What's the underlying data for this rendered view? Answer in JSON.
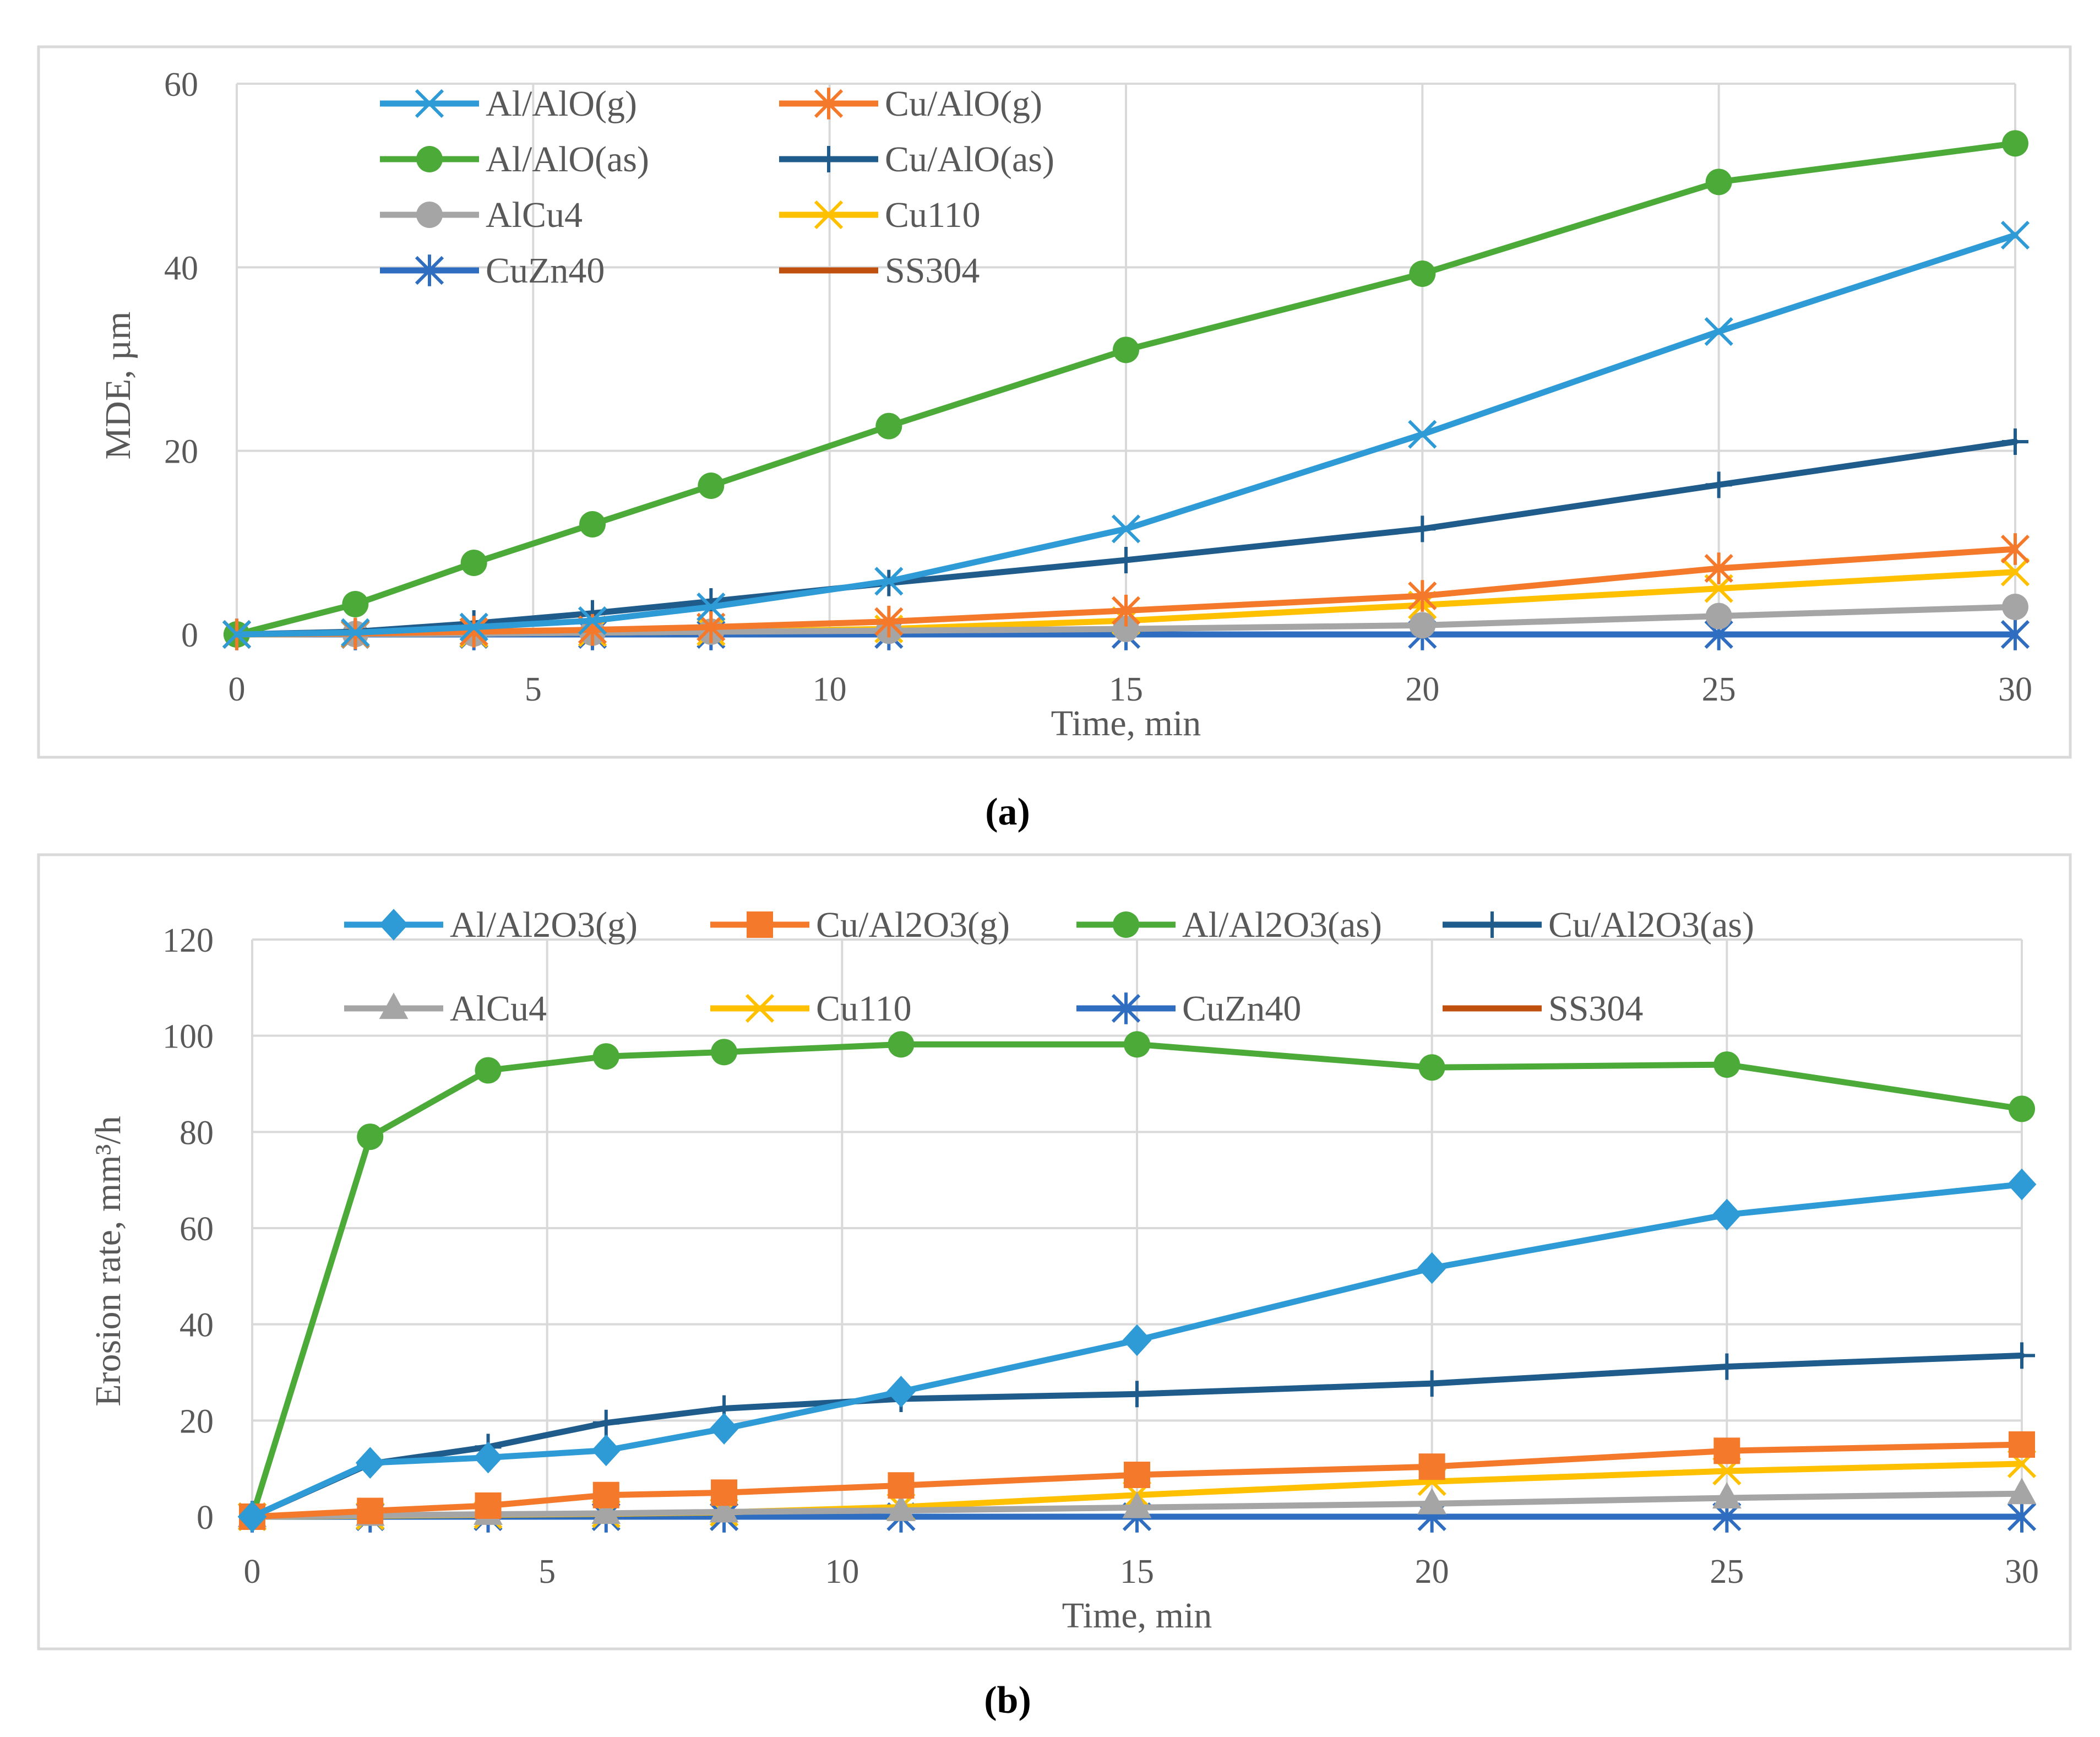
{
  "chart_data": [
    {
      "type": "line",
      "panel_label": "(a)",
      "xlabel": "Time, min",
      "ylabel": "MDE, µm",
      "xlim": [
        0,
        30
      ],
      "ylim": [
        0,
        60
      ],
      "xticks": [
        0,
        5,
        10,
        15,
        20,
        25,
        30
      ],
      "yticks": [
        0,
        20,
        40,
        60
      ],
      "xtick_labels": [
        "0",
        "5",
        "10",
        "15",
        "20",
        "25",
        "30"
      ],
      "ytick_labels": [
        "0",
        "20",
        "40",
        "60"
      ],
      "grid": true,
      "legend_position": "top-left",
      "x": [
        0,
        2,
        4,
        6,
        8,
        11,
        15,
        20,
        25,
        30
      ],
      "series": [
        {
          "name": "Al/AlO(g)",
          "color": "#2E9BD6",
          "marker": "x",
          "values": [
            0,
            0.2,
            0.8,
            1.5,
            3.0,
            5.8,
            11.5,
            21.8,
            33.0,
            43.5
          ]
        },
        {
          "name": "Cu/AlO(g)",
          "color": "#F4792B",
          "marker": "asterisk",
          "values": [
            0,
            0.1,
            0.3,
            0.5,
            0.8,
            1.4,
            2.6,
            4.2,
            7.2,
            9.3
          ]
        },
        {
          "name": "Al/AlO(as)",
          "color": "#4BAA38",
          "marker": "circle",
          "values": [
            0,
            3.3,
            7.8,
            12.0,
            16.2,
            22.7,
            31.0,
            39.3,
            49.3,
            53.5
          ]
        },
        {
          "name": "Cu/AlO(as)",
          "color": "#1F5C8B",
          "marker": "plus",
          "values": [
            0,
            0.3,
            1.2,
            2.3,
            3.6,
            5.6,
            8.1,
            11.5,
            16.3,
            21.0
          ]
        },
        {
          "name": "AlCu4",
          "color": "#A5A5A5",
          "marker": "circle",
          "values": [
            0,
            0.05,
            0.1,
            0.2,
            0.3,
            0.4,
            0.6,
            1.0,
            2.0,
            3.0
          ]
        },
        {
          "name": "Cu110",
          "color": "#FFC000",
          "marker": "x",
          "values": [
            0,
            0.05,
            0.1,
            0.2,
            0.3,
            0.6,
            1.5,
            3.2,
            5.0,
            6.8
          ]
        },
        {
          "name": "CuZn40",
          "color": "#2F6DC0",
          "marker": "asterisk",
          "values": [
            0,
            0,
            0,
            0,
            0,
            0,
            0,
            0,
            0,
            0
          ]
        },
        {
          "name": "SS304",
          "color": "#C0500E",
          "marker": "none",
          "values": [
            0,
            0,
            0,
            0,
            0,
            0,
            0,
            0,
            0,
            0
          ]
        }
      ]
    },
    {
      "type": "line",
      "panel_label": "(b)",
      "xlabel": "Time, min",
      "ylabel": "Erosion rate, mm³/h",
      "xlim": [
        0,
        30
      ],
      "ylim": [
        0,
        120
      ],
      "xticks": [
        0,
        5,
        10,
        15,
        20,
        25,
        30
      ],
      "yticks": [
        0,
        20,
        40,
        60,
        80,
        100,
        120
      ],
      "xtick_labels": [
        "0",
        "5",
        "10",
        "15",
        "20",
        "25",
        "30"
      ],
      "ytick_labels": [
        "0",
        "20",
        "40",
        "60",
        "80",
        "100",
        "120"
      ],
      "grid": true,
      "legend_position": "top",
      "x": [
        0,
        2,
        4,
        6,
        8,
        11,
        15,
        20,
        25,
        30
      ],
      "series": [
        {
          "name": "Al/Al2O3(g)",
          "color": "#2E9BD6",
          "marker": "diamond",
          "values": [
            0,
            11.2,
            12.3,
            13.8,
            18.3,
            26.0,
            36.7,
            51.7,
            62.8,
            69.1
          ]
        },
        {
          "name": "Cu/Al2O3(g)",
          "color": "#F4792B",
          "marker": "square",
          "values": [
            0,
            1.2,
            2.3,
            4.5,
            5.0,
            6.5,
            8.7,
            10.4,
            13.7,
            15.0
          ]
        },
        {
          "name": "Al/Al2O3(as)",
          "color": "#4BAA38",
          "marker": "circle",
          "values": [
            0,
            79.0,
            92.8,
            95.7,
            96.6,
            98.2,
            98.2,
            93.4,
            94.0,
            84.8
          ]
        },
        {
          "name": "Cu/Al2O3(as)",
          "color": "#1F5C8B",
          "marker": "plus",
          "values": [
            0,
            11.0,
            14.5,
            19.5,
            22.5,
            24.5,
            25.5,
            27.7,
            31.2,
            33.5
          ]
        },
        {
          "name": "AlCu4",
          "color": "#A5A5A5",
          "marker": "triangle",
          "values": [
            0,
            0.3,
            0.5,
            0.7,
            1.0,
            1.3,
            1.9,
            2.7,
            3.9,
            4.8
          ]
        },
        {
          "name": "Cu110",
          "color": "#FFC000",
          "marker": "x",
          "values": [
            0,
            0.2,
            0.4,
            0.6,
            0.9,
            2.0,
            4.5,
            7.3,
            9.5,
            11.0
          ]
        },
        {
          "name": "CuZn40",
          "color": "#2F6DC0",
          "marker": "asterisk",
          "values": [
            0,
            0,
            0,
            0,
            0,
            0,
            0,
            0,
            0,
            0
          ]
        },
        {
          "name": "SS304",
          "color": "#C0500E",
          "marker": "none",
          "values": [
            0,
            0,
            0,
            0,
            0,
            0,
            0,
            0,
            0,
            0
          ]
        }
      ]
    }
  ]
}
